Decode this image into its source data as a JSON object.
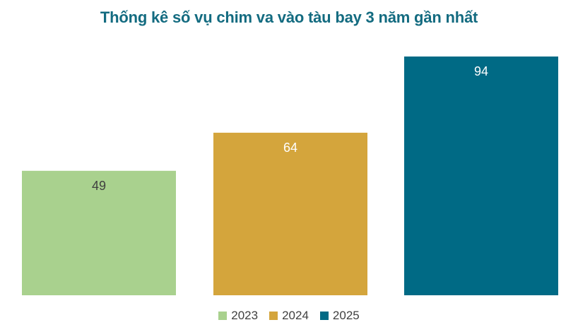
{
  "chart_data": {
    "type": "bar",
    "title": "Thống kê số vụ chim va vào tàu bay 3 năm gần nhất",
    "categories": [
      "2023",
      "2024",
      "2025"
    ],
    "values": [
      49,
      64,
      94
    ],
    "data_labels": [
      "49",
      "64",
      "94"
    ],
    "colors": [
      "#a9d18e",
      "#d4a53c",
      "#006a85"
    ],
    "data_label_colors": [
      "#404040",
      "#ffffff",
      "#ffffff"
    ],
    "title_color": "#136b80",
    "ylim": [
      0,
      94
    ],
    "grid": false,
    "legend": {
      "position": "bottom",
      "entries": [
        "2023",
        "2024",
        "2025"
      ]
    }
  }
}
